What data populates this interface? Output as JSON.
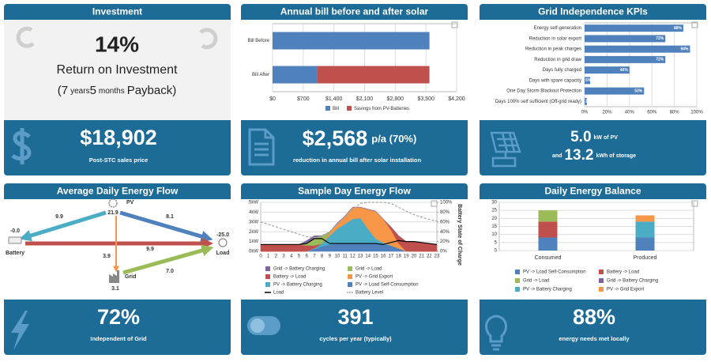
{
  "panels": [
    {
      "title": "Investment",
      "headline": "14%",
      "headline_label": "Return on Investment",
      "payback": [
        "(7",
        "years",
        "5",
        "months",
        "Payback)"
      ],
      "footer": {
        "value": "$18,902",
        "label": "Post-STC sales price"
      }
    },
    {
      "title": "Annual bill before and after solar",
      "chart_data": {
        "type": "bar",
        "categories": [
          "Bill Before",
          "Bill After"
        ],
        "series": [
          {
            "name": "Bill",
            "color": "#4f81bd",
            "values": [
              3580,
              1012
            ]
          },
          {
            "name": "Savings from PV-Batteries",
            "color": "#c0504d",
            "values": [
              0,
              2568
            ]
          }
        ],
        "xlim": [
          0,
          4200
        ],
        "xticks": [
          {
            "value": 0,
            "label": "$0"
          },
          {
            "value": 700,
            "label": "$700"
          },
          {
            "value": 1400,
            "label": "$1,400"
          },
          {
            "value": 2100,
            "label": "$2,100"
          },
          {
            "value": 2800,
            "label": "$2,800"
          },
          {
            "value": 3500,
            "label": "$3,500"
          },
          {
            "value": 4200,
            "label": "$4,200"
          }
        ],
        "grid": true
      },
      "footer": {
        "value": "$2,568",
        "suffix": "p/a (70%)",
        "label": "reduction in annual bill after solar installation"
      }
    },
    {
      "title": "Grid Independence KPIs",
      "chart_data": {
        "type": "bar",
        "categories": [
          "Energy self-generation",
          "Reduction in solar export",
          "Reduction in peak charges",
          "Reduction in grid draw",
          "Days fully charged",
          "Days with spare capacity",
          "One Day Storm Blackout Protection",
          "Days 100% self sufficient (Off-grid ready)"
        ],
        "values": [
          88,
          72,
          94,
          72,
          40,
          5,
          53,
          2
        ],
        "value_labels": [
          "88%",
          "72%",
          "94%",
          "72%",
          "40%",
          "5%",
          "53%",
          "2%"
        ],
        "color": "#4f81bd",
        "xlim": [
          0,
          100
        ],
        "xticks": [
          {
            "value": 0,
            "label": "0%"
          },
          {
            "value": 20,
            "label": "20%"
          },
          {
            "value": 40,
            "label": "40%"
          },
          {
            "value": 60,
            "label": "60%"
          },
          {
            "value": 80,
            "label": "80%"
          },
          {
            "value": 100,
            "label": "100%"
          }
        ],
        "grid": true
      },
      "footer": {
        "lines": [
          [
            "5.0",
            "kW of PV"
          ],
          [
            "and",
            "13.2",
            "kWh of storage"
          ]
        ]
      }
    },
    {
      "title": "Average Daily Energy Flow",
      "nodes": [
        {
          "label": "PV",
          "value": "21.9"
        },
        {
          "label": "Battery",
          "value": "-0.0"
        },
        {
          "label": "Load",
          "value": "-25.0"
        },
        {
          "label": "Grid",
          "value": "3.1"
        }
      ],
      "flows": [
        "9.9",
        "8.1",
        "3.9",
        "9.9",
        "7.0"
      ],
      "footer": {
        "value": "72%",
        "label": "Independent of Grid"
      }
    },
    {
      "title": "Sample Day Energy Flow",
      "chart_data": {
        "type": "area",
        "x": [
          0,
          1,
          2,
          3,
          4,
          5,
          6,
          7,
          8,
          9,
          10,
          11,
          12,
          13,
          14,
          15,
          16,
          17,
          18,
          19,
          20,
          21,
          22,
          23
        ],
        "xlim": [
          0,
          23
        ],
        "ylim": [
          0,
          5
        ],
        "yticks": [
          {
            "value": 0,
            "label": "0kW"
          },
          {
            "value": 1,
            "label": "1kW"
          },
          {
            "value": 2,
            "label": "2kW"
          },
          {
            "value": 3,
            "label": "3kW"
          },
          {
            "value": 4,
            "label": "4kW"
          },
          {
            "value": 5,
            "label": "5kW"
          }
        ],
        "y2lim": [
          0,
          100
        ],
        "y2ticks": [
          {
            "value": 0,
            "label": "0%"
          },
          {
            "value": 20,
            "label": "20%"
          },
          {
            "value": 40,
            "label": "40%"
          },
          {
            "value": 60,
            "label": "60%"
          },
          {
            "value": 80,
            "label": "80%"
          },
          {
            "value": 100,
            "label": "100%"
          }
        ],
        "y2label": "Battery State of Charge",
        "grid": true,
        "series": [
          {
            "name": "Grid -> Battery Charging",
            "color": "#8064a2",
            "type": "area",
            "values": [
              0,
              0,
              0,
              0,
              0,
              0,
              0.3,
              0.2,
              0,
              0,
              0,
              0,
              0,
              0,
              0,
              0,
              0,
              0,
              0,
              0,
              0,
              0,
              0,
              0
            ]
          },
          {
            "name": "Grid -> Load",
            "color": "#9bbb59",
            "type": "area",
            "values": [
              0,
              0,
              0,
              0,
              0,
              0,
              0.2,
              0.8,
              0.8,
              0.1,
              0,
              0,
              0,
              0,
              0,
              0,
              0,
              0,
              0,
              0,
              0,
              0,
              0,
              0
            ]
          },
          {
            "name": "Battery -> Load",
            "color": "#c0504d",
            "type": "area",
            "values": [
              0.7,
              0.7,
              0.7,
              0.7,
              0.7,
              0.7,
              0.6,
              0.3,
              0,
              0,
              0,
              0,
              0,
              0,
              0,
              0,
              0,
              0.3,
              0.8,
              1.0,
              1.0,
              0.9,
              0.8,
              0.7
            ]
          },
          {
            "name": "PV -> Grid Export",
            "color": "#f79646",
            "type": "area",
            "values": [
              0,
              0,
              0,
              0,
              0,
              0,
              0,
              0,
              0,
              0.3,
              0.6,
              0.8,
              1.2,
              1.1,
              2.0,
              2.8,
              2.4,
              1.6,
              0.5,
              0,
              0,
              0,
              0,
              0
            ]
          },
          {
            "name": "PV -> Battery Charging",
            "color": "#4bacc6",
            "type": "area",
            "values": [
              0,
              0,
              0,
              0,
              0,
              0,
              0,
              0.1,
              0.3,
              0.9,
              1.5,
              2.0,
              2.5,
              2.6,
              1.5,
              0.5,
              0.2,
              0,
              0,
              0,
              0,
              0,
              0,
              0
            ]
          },
          {
            "name": "PV -> Load Self-Consumption",
            "color": "#4f81bd",
            "type": "area",
            "values": [
              0,
              0,
              0,
              0,
              0,
              0,
              0,
              0.2,
              0.5,
              0.7,
              0.8,
              0.8,
              0.8,
              0.8,
              0.8,
              0.8,
              0.7,
              0.6,
              0.3,
              0,
              0,
              0,
              0,
              0
            ]
          },
          {
            "name": "Load",
            "color": "#000000",
            "type": "line",
            "values": [
              0.7,
              0.7,
              0.7,
              0.7,
              0.7,
              0.7,
              0.8,
              1.3,
              1.3,
              0.8,
              0.8,
              0.8,
              0.8,
              0.8,
              0.8,
              0.8,
              0.7,
              0.9,
              1.1,
              1.0,
              1.0,
              0.9,
              0.8,
              0.7
            ]
          },
          {
            "name": "Battery Level",
            "color": "#a6a6a6",
            "type": "line",
            "dashed": true,
            "axis": "y2",
            "values": [
              60,
              55,
              50,
              45,
              40,
              35,
              30,
              28,
              30,
              40,
              55,
              70,
              85,
              98,
              100,
              100,
              100,
              98,
              90,
              82,
              75,
              70,
              65,
              62
            ]
          }
        ]
      },
      "footer": {
        "value": "391",
        "label": "cycles per year (typically)"
      }
    },
    {
      "title": "Daily Energy Balance",
      "chart_data": {
        "type": "bar",
        "categories": [
          "Consumed",
          "Produced"
        ],
        "ylim": [
          0,
          30
        ],
        "yticks": [
          0,
          5,
          10,
          15,
          20,
          25,
          30
        ],
        "grid": true,
        "series": [
          {
            "name": "PV -> Load Self-Consumption",
            "color": "#4f81bd",
            "values": [
              8.1,
              8.1
            ]
          },
          {
            "name": "Battery -> Load",
            "color": "#c0504d",
            "values": [
              9.9,
              0
            ]
          },
          {
            "name": "Grid -> Load",
            "color": "#9bbb59",
            "values": [
              7.0,
              0
            ]
          },
          {
            "name": "Grid -> Battery Charging",
            "color": "#8064a2",
            "values": [
              0,
              0
            ]
          },
          {
            "name": "PV -> Battery Charging",
            "color": "#4bacc6",
            "values": [
              0,
              9.9
            ]
          },
          {
            "name": "PV -> Grid Export",
            "color": "#f79646",
            "values": [
              0,
              3.9
            ]
          }
        ]
      },
      "footer": {
        "value": "88%",
        "label": "energy needs met locally"
      }
    }
  ]
}
